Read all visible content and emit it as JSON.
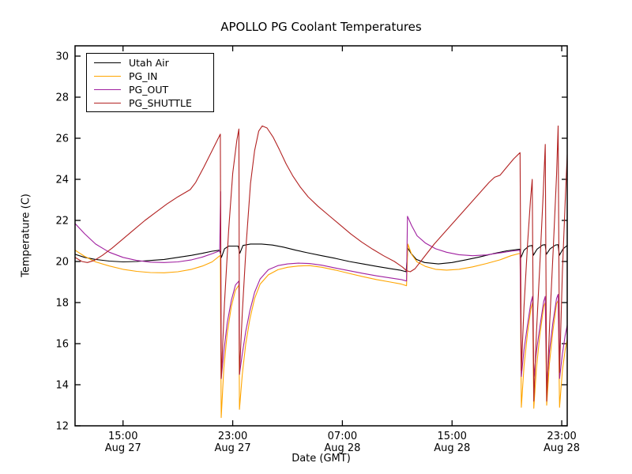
{
  "chart_data": {
    "type": "line",
    "title": "APOLLO PG Coolant Temperatures",
    "xlabel": "Date (GMT)",
    "ylabel": "Temperature (C)",
    "x_unit": "hours since Aug 27 00:00 GMT",
    "xlim": [
      11.5,
      47.4
    ],
    "ylim": [
      12,
      30.5
    ],
    "grid": false,
    "legend_position": "upper left",
    "y_ticks": [
      12,
      14,
      16,
      18,
      20,
      22,
      24,
      26,
      28,
      30
    ],
    "x_ticks": [
      {
        "value": 15,
        "time": "15:00",
        "date": "Aug 27"
      },
      {
        "value": 23,
        "time": "23:00",
        "date": "Aug 27"
      },
      {
        "value": 31,
        "time": "07:00",
        "date": "Aug 28"
      },
      {
        "value": 39,
        "time": "15:00",
        "date": "Aug 28"
      },
      {
        "value": 47,
        "time": "23:00",
        "date": "Aug 28"
      }
    ],
    "series": [
      {
        "name": "Utah Air",
        "color": "#000000",
        "points": [
          [
            11.5,
            20.35
          ],
          [
            12.2,
            20.2
          ],
          [
            13,
            20.1
          ],
          [
            14,
            20.02
          ],
          [
            15,
            19.98
          ],
          [
            16,
            20.0
          ],
          [
            17,
            20.05
          ],
          [
            18,
            20.1
          ],
          [
            19,
            20.2
          ],
          [
            20,
            20.3
          ],
          [
            20.8,
            20.4
          ],
          [
            21.5,
            20.5
          ],
          [
            22.05,
            20.55
          ],
          [
            22.18,
            20.2
          ],
          [
            22.4,
            20.62
          ],
          [
            22.7,
            20.75
          ],
          [
            23.4,
            20.75
          ],
          [
            23.52,
            20.4
          ],
          [
            23.75,
            20.78
          ],
          [
            24.3,
            20.85
          ],
          [
            25.1,
            20.85
          ],
          [
            25.9,
            20.8
          ],
          [
            26.7,
            20.7
          ],
          [
            27.6,
            20.55
          ],
          [
            28.5,
            20.42
          ],
          [
            29.5,
            20.28
          ],
          [
            30.5,
            20.15
          ],
          [
            31.5,
            20.0
          ],
          [
            32.5,
            19.88
          ],
          [
            33.5,
            19.76
          ],
          [
            34.5,
            19.65
          ],
          [
            35.2,
            19.58
          ],
          [
            35.65,
            19.5
          ],
          [
            35.78,
            20.65
          ],
          [
            36.0,
            20.4
          ],
          [
            36.4,
            20.1
          ],
          [
            37,
            19.95
          ],
          [
            38,
            19.88
          ],
          [
            39,
            19.95
          ],
          [
            40,
            20.08
          ],
          [
            41,
            20.22
          ],
          [
            42,
            20.38
          ],
          [
            43,
            20.52
          ],
          [
            43.93,
            20.6
          ],
          [
            44.03,
            20.2
          ],
          [
            44.25,
            20.55
          ],
          [
            44.6,
            20.75
          ],
          [
            44.84,
            20.78
          ],
          [
            44.93,
            20.3
          ],
          [
            45.2,
            20.6
          ],
          [
            45.6,
            20.8
          ],
          [
            45.79,
            20.82
          ],
          [
            45.88,
            20.35
          ],
          [
            46.15,
            20.62
          ],
          [
            46.55,
            20.8
          ],
          [
            46.73,
            20.82
          ],
          [
            46.83,
            20.3
          ],
          [
            47.1,
            20.62
          ],
          [
            47.4,
            20.78
          ]
        ]
      },
      {
        "name": "PG_IN",
        "color": "#FFA500",
        "points": [
          [
            11.5,
            20.55
          ],
          [
            12.2,
            20.25
          ],
          [
            13,
            19.98
          ],
          [
            14,
            19.78
          ],
          [
            15,
            19.62
          ],
          [
            16,
            19.52
          ],
          [
            17,
            19.46
          ],
          [
            18,
            19.45
          ],
          [
            19,
            19.5
          ],
          [
            20,
            19.62
          ],
          [
            20.8,
            19.78
          ],
          [
            21.5,
            19.98
          ],
          [
            22.1,
            20.3
          ],
          [
            22.16,
            12.4
          ],
          [
            22.35,
            14.8
          ],
          [
            22.6,
            16.5
          ],
          [
            22.9,
            17.8
          ],
          [
            23.2,
            18.6
          ],
          [
            23.45,
            18.85
          ],
          [
            23.49,
            12.8
          ],
          [
            23.7,
            14.5
          ],
          [
            23.95,
            16.0
          ],
          [
            24.25,
            17.2
          ],
          [
            24.6,
            18.2
          ],
          [
            25.0,
            18.9
          ],
          [
            25.6,
            19.35
          ],
          [
            26.3,
            19.6
          ],
          [
            27.0,
            19.72
          ],
          [
            27.8,
            19.78
          ],
          [
            28.6,
            19.8
          ],
          [
            29.5,
            19.72
          ],
          [
            30.5,
            19.58
          ],
          [
            31.5,
            19.42
          ],
          [
            32.5,
            19.26
          ],
          [
            33.5,
            19.12
          ],
          [
            34.5,
            19.0
          ],
          [
            35.3,
            18.9
          ],
          [
            35.68,
            18.82
          ],
          [
            35.78,
            20.85
          ],
          [
            36.05,
            20.35
          ],
          [
            36.45,
            19.98
          ],
          [
            37.05,
            19.76
          ],
          [
            37.8,
            19.62
          ],
          [
            38.6,
            19.58
          ],
          [
            39.5,
            19.62
          ],
          [
            40.5,
            19.74
          ],
          [
            41.5,
            19.9
          ],
          [
            42.5,
            20.08
          ],
          [
            43.3,
            20.28
          ],
          [
            43.96,
            20.4
          ],
          [
            44.05,
            12.9
          ],
          [
            44.25,
            14.9
          ],
          [
            44.5,
            16.5
          ],
          [
            44.75,
            17.7
          ],
          [
            44.87,
            18.0
          ],
          [
            44.96,
            12.85
          ],
          [
            45.15,
            14.8
          ],
          [
            45.4,
            16.4
          ],
          [
            45.68,
            17.8
          ],
          [
            45.8,
            18.0
          ],
          [
            45.9,
            13.0
          ],
          [
            46.1,
            15.0
          ],
          [
            46.35,
            16.6
          ],
          [
            46.62,
            17.95
          ],
          [
            46.74,
            18.1
          ],
          [
            46.84,
            12.9
          ],
          [
            47.05,
            14.7
          ],
          [
            47.25,
            15.7
          ],
          [
            47.4,
            16.2
          ]
        ]
      },
      {
        "name": "PG_OUT",
        "color": "#A020A0",
        "points": [
          [
            11.5,
            21.85
          ],
          [
            12.2,
            21.35
          ],
          [
            13,
            20.85
          ],
          [
            14,
            20.45
          ],
          [
            15,
            20.2
          ],
          [
            16,
            20.05
          ],
          [
            17,
            19.97
          ],
          [
            18,
            19.95
          ],
          [
            19,
            19.98
          ],
          [
            20,
            20.08
          ],
          [
            20.8,
            20.22
          ],
          [
            21.5,
            20.38
          ],
          [
            22.05,
            20.52
          ],
          [
            22.12,
            23.4
          ],
          [
            22.16,
            14.3
          ],
          [
            22.35,
            15.6
          ],
          [
            22.6,
            17.0
          ],
          [
            22.9,
            18.1
          ],
          [
            23.2,
            18.85
          ],
          [
            23.45,
            19.05
          ],
          [
            23.49,
            14.5
          ],
          [
            23.7,
            15.5
          ],
          [
            23.95,
            16.6
          ],
          [
            24.25,
            17.6
          ],
          [
            24.6,
            18.5
          ],
          [
            25.0,
            19.15
          ],
          [
            25.6,
            19.6
          ],
          [
            26.3,
            19.8
          ],
          [
            27.0,
            19.88
          ],
          [
            27.8,
            19.92
          ],
          [
            28.6,
            19.9
          ],
          [
            29.5,
            19.82
          ],
          [
            30.5,
            19.68
          ],
          [
            31.5,
            19.55
          ],
          [
            32.5,
            19.42
          ],
          [
            33.5,
            19.3
          ],
          [
            34.5,
            19.2
          ],
          [
            35.3,
            19.12
          ],
          [
            35.68,
            19.05
          ],
          [
            35.75,
            22.2
          ],
          [
            36.05,
            21.75
          ],
          [
            36.45,
            21.25
          ],
          [
            37.05,
            20.9
          ],
          [
            37.8,
            20.62
          ],
          [
            38.6,
            20.45
          ],
          [
            39.5,
            20.33
          ],
          [
            40.5,
            20.28
          ],
          [
            41.5,
            20.32
          ],
          [
            42.5,
            20.42
          ],
          [
            43.3,
            20.5
          ],
          [
            43.96,
            20.55
          ],
          [
            44.05,
            14.4
          ],
          [
            44.25,
            15.7
          ],
          [
            44.5,
            16.9
          ],
          [
            44.75,
            18.0
          ],
          [
            44.87,
            18.3
          ],
          [
            44.96,
            14.4
          ],
          [
            45.15,
            15.6
          ],
          [
            45.4,
            16.8
          ],
          [
            45.68,
            18.05
          ],
          [
            45.8,
            18.3
          ],
          [
            45.9,
            13.9
          ],
          [
            46.1,
            15.6
          ],
          [
            46.35,
            17.0
          ],
          [
            46.62,
            18.2
          ],
          [
            46.74,
            18.4
          ],
          [
            46.84,
            14.3
          ],
          [
            47.05,
            15.5
          ],
          [
            47.25,
            16.4
          ],
          [
            47.4,
            16.9
          ]
        ]
      },
      {
        "name": "PG_SHUTTLE",
        "color": "#B22222",
        "points": [
          [
            11.5,
            20.2
          ],
          [
            12.0,
            20.0
          ],
          [
            12.4,
            19.95
          ],
          [
            12.9,
            20.05
          ],
          [
            13.5,
            20.3
          ],
          [
            14.2,
            20.65
          ],
          [
            15.0,
            21.1
          ],
          [
            15.8,
            21.55
          ],
          [
            16.6,
            22.0
          ],
          [
            17.4,
            22.4
          ],
          [
            18.2,
            22.8
          ],
          [
            19.0,
            23.15
          ],
          [
            19.9,
            23.5
          ],
          [
            20.3,
            23.85
          ],
          [
            20.9,
            24.6
          ],
          [
            21.5,
            25.4
          ],
          [
            22.1,
            26.2
          ],
          [
            22.16,
            14.3
          ],
          [
            22.4,
            18.0
          ],
          [
            22.7,
            21.5
          ],
          [
            23.0,
            24.3
          ],
          [
            23.3,
            25.9
          ],
          [
            23.45,
            26.45
          ],
          [
            23.49,
            14.5
          ],
          [
            23.7,
            17.5
          ],
          [
            24.0,
            21.0
          ],
          [
            24.3,
            23.8
          ],
          [
            24.6,
            25.4
          ],
          [
            24.9,
            26.35
          ],
          [
            25.15,
            26.6
          ],
          [
            25.5,
            26.5
          ],
          [
            25.95,
            26.05
          ],
          [
            26.4,
            25.45
          ],
          [
            26.9,
            24.75
          ],
          [
            27.4,
            24.15
          ],
          [
            27.9,
            23.65
          ],
          [
            28.5,
            23.15
          ],
          [
            29.2,
            22.7
          ],
          [
            30.0,
            22.25
          ],
          [
            30.8,
            21.8
          ],
          [
            31.6,
            21.35
          ],
          [
            32.4,
            20.95
          ],
          [
            33.2,
            20.6
          ],
          [
            34.0,
            20.28
          ],
          [
            34.8,
            20.0
          ],
          [
            35.4,
            19.72
          ],
          [
            35.68,
            19.55
          ],
          [
            35.95,
            19.5
          ],
          [
            36.3,
            19.65
          ],
          [
            37.0,
            20.25
          ],
          [
            37.7,
            20.85
          ],
          [
            38.5,
            21.45
          ],
          [
            39.3,
            22.05
          ],
          [
            40.1,
            22.65
          ],
          [
            40.9,
            23.25
          ],
          [
            41.7,
            23.85
          ],
          [
            42.1,
            24.1
          ],
          [
            42.5,
            24.2
          ],
          [
            43.0,
            24.6
          ],
          [
            43.5,
            25.0
          ],
          [
            43.96,
            25.3
          ],
          [
            44.05,
            14.7
          ],
          [
            44.25,
            17.8
          ],
          [
            44.5,
            20.8
          ],
          [
            44.72,
            23.0
          ],
          [
            44.85,
            24.0
          ],
          [
            44.96,
            13.2
          ],
          [
            45.15,
            16.5
          ],
          [
            45.4,
            19.8
          ],
          [
            45.65,
            23.3
          ],
          [
            45.8,
            25.7
          ],
          [
            45.9,
            13.2
          ],
          [
            46.12,
            17.0
          ],
          [
            46.38,
            20.6
          ],
          [
            46.62,
            24.2
          ],
          [
            46.74,
            26.6
          ],
          [
            46.84,
            14.6
          ],
          [
            47.05,
            19.5
          ],
          [
            47.25,
            22.9
          ],
          [
            47.4,
            25.2
          ]
        ]
      }
    ]
  }
}
